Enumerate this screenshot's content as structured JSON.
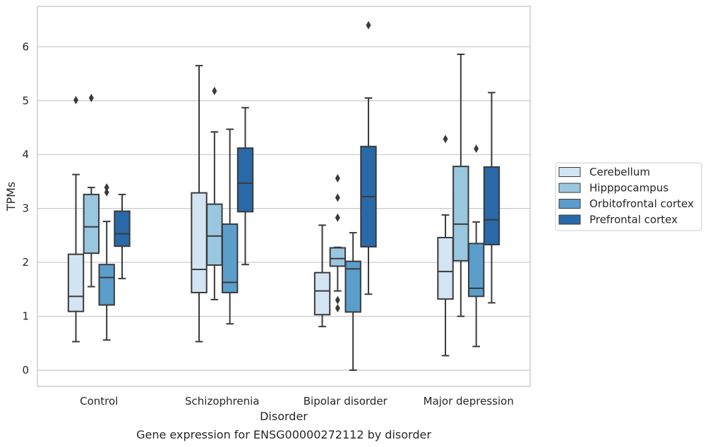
{
  "chart_data": {
    "type": "box",
    "caption": "Gene expression for ENSG00000272112 by disorder",
    "xlabel": "Disorder",
    "ylabel": "TPMs",
    "ylim": [
      -0.3,
      6.75
    ],
    "yticks": [
      0,
      1,
      2,
      3,
      4,
      5,
      6
    ],
    "grid": "horizontal",
    "legend_position": "right, outside plot",
    "categories": [
      "Control",
      "Schizophrenia",
      "Bipolar disorder",
      "Major depression"
    ],
    "series": [
      {
        "name": "Cerebellum",
        "color": "#d3e4f3",
        "boxes": [
          {
            "whisker_low": 0.53,
            "q1": 1.09,
            "median": 1.37,
            "q3": 2.15,
            "whisker_high": 3.63,
            "outliers": [
              5.01
            ]
          },
          {
            "whisker_low": 0.53,
            "q1": 1.44,
            "median": 1.87,
            "q3": 3.29,
            "whisker_high": 5.65,
            "outliers": []
          },
          {
            "whisker_low": 0.81,
            "q1": 1.03,
            "median": 1.47,
            "q3": 1.81,
            "whisker_high": 2.69,
            "outliers": []
          },
          {
            "whisker_low": 0.27,
            "q1": 1.32,
            "median": 1.83,
            "q3": 2.46,
            "whisker_high": 2.88,
            "outliers": [
              4.29
            ]
          }
        ]
      },
      {
        "name": "Hipppocampus",
        "color": "#9ac7e0",
        "boxes": [
          {
            "whisker_low": 1.55,
            "q1": 2.17,
            "median": 2.66,
            "q3": 3.26,
            "whisker_high": 3.39,
            "outliers": [
              5.05
            ]
          },
          {
            "whisker_low": 1.31,
            "q1": 1.95,
            "median": 2.49,
            "q3": 3.08,
            "whisker_high": 4.42,
            "outliers": [
              5.18
            ]
          },
          {
            "whisker_low": 1.47,
            "q1": 1.93,
            "median": 2.07,
            "q3": 2.27,
            "whisker_high": 2.28,
            "outliers": [
              3.56,
              3.2,
              2.83,
              1.3,
              1.15
            ]
          },
          {
            "whisker_low": 1.0,
            "q1": 2.03,
            "median": 2.71,
            "q3": 3.78,
            "whisker_high": 5.86,
            "outliers": []
          }
        ]
      },
      {
        "name": "Orbitofrontal cortex",
        "color": "#5b9ecb",
        "boxes": [
          {
            "whisker_low": 0.56,
            "q1": 1.21,
            "median": 1.72,
            "q3": 1.96,
            "whisker_high": 2.76,
            "outliers": [
              3.39,
              3.3
            ]
          },
          {
            "whisker_low": 0.86,
            "q1": 1.44,
            "median": 1.63,
            "q3": 2.71,
            "whisker_high": 4.47,
            "outliers": []
          },
          {
            "whisker_low": 0.0,
            "q1": 1.08,
            "median": 1.88,
            "q3": 2.02,
            "whisker_high": 2.55,
            "outliers": []
          },
          {
            "whisker_low": 0.44,
            "q1": 1.37,
            "median": 1.52,
            "q3": 2.35,
            "whisker_high": 2.75,
            "outliers": [
              4.11
            ]
          }
        ]
      },
      {
        "name": "Prefrontal cortex",
        "color": "#2a69a8",
        "boxes": [
          {
            "whisker_low": 1.7,
            "q1": 2.3,
            "median": 2.53,
            "q3": 2.95,
            "whisker_high": 3.26,
            "outliers": []
          },
          {
            "whisker_low": 1.96,
            "q1": 2.94,
            "median": 3.47,
            "q3": 4.12,
            "whisker_high": 4.87,
            "outliers": []
          },
          {
            "whisker_low": 1.41,
            "q1": 2.29,
            "median": 3.22,
            "q3": 4.15,
            "whisker_high": 5.05,
            "outliers": [
              6.4
            ]
          },
          {
            "whisker_low": 1.25,
            "q1": 2.33,
            "median": 2.79,
            "q3": 3.77,
            "whisker_high": 5.15,
            "outliers": []
          }
        ]
      }
    ]
  }
}
